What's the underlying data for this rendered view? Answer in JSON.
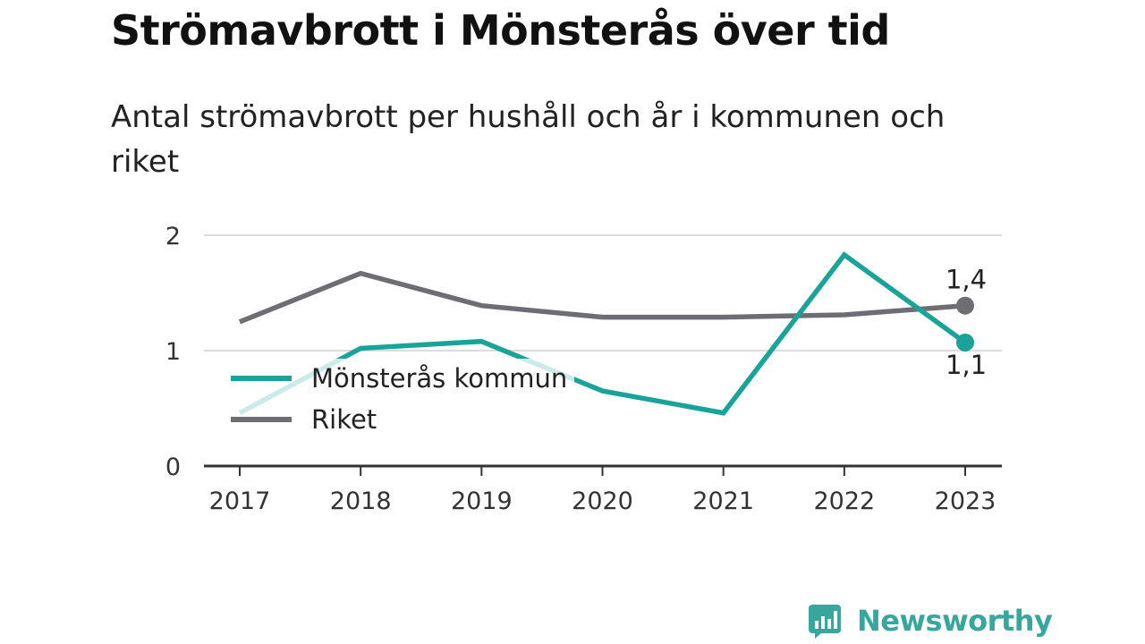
{
  "header": {
    "title": "Strömavbrott i Mönsterås över tid",
    "subtitle": "Antal strömavbrott per hushåll och år i kommunen och riket"
  },
  "colors": {
    "monsteras": "#1aa398",
    "riket": "#6e6d73",
    "grid": "#dcdcdc",
    "axis": "#333333",
    "brand": "#37a69c"
  },
  "chart_data": {
    "type": "line",
    "title": "Strömavbrott i Mönsterås över tid",
    "subtitle": "Antal strömavbrott per hushåll och år i kommunen och riket",
    "x": [
      "2017",
      "2018",
      "2019",
      "2020",
      "2021",
      "2022",
      "2023"
    ],
    "ylim": [
      0,
      2
    ],
    "yticks": [
      "0",
      "1",
      "2"
    ],
    "grid": true,
    "legend_position": "bottom-left",
    "series": [
      {
        "name": "Mönsterås kommun",
        "values": [
          0.46,
          1.02,
          1.08,
          0.65,
          0.46,
          1.83,
          1.07
        ],
        "color_key": "monsteras",
        "end_label": "1,1"
      },
      {
        "name": "Riket",
        "values": [
          1.25,
          1.67,
          1.39,
          1.29,
          1.29,
          1.31,
          1.39
        ],
        "color_key": "riket",
        "end_label": "1,4"
      }
    ]
  },
  "branding": {
    "name": "Newsworthy",
    "icon": "bar-chart-speech-icon"
  }
}
